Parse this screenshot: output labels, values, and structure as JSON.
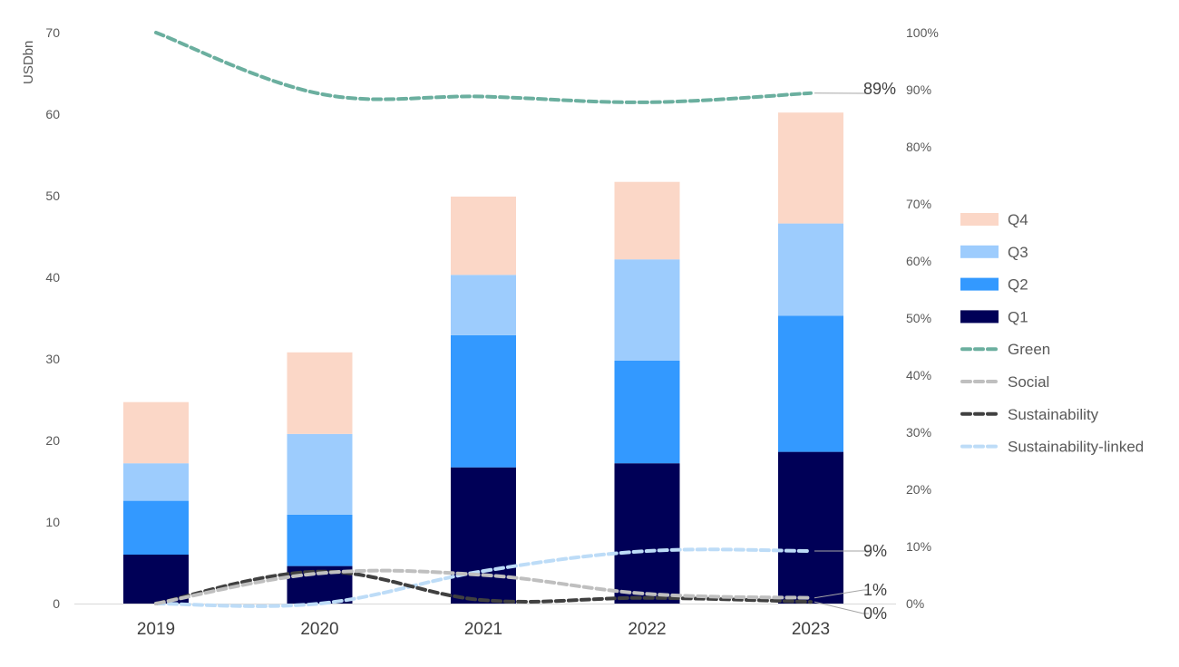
{
  "chart_data": {
    "type": "bar",
    "stacked": true,
    "categories": [
      "2019",
      "2020",
      "2021",
      "2022",
      "2023"
    ],
    "ylabel": "USDbn",
    "ylim": [
      0,
      70
    ],
    "yticks": [
      "0",
      "10",
      "20",
      "30",
      "40",
      "50",
      "60",
      "70"
    ],
    "y2lim": [
      0,
      100
    ],
    "y2ticks": [
      "0%",
      "10%",
      "20%",
      "30%",
      "40%",
      "50%",
      "60%",
      "70%",
      "80%",
      "90%",
      "100%"
    ],
    "series": [
      {
        "name": "Q1",
        "type": "bar",
        "axis": "left",
        "color": "#000057",
        "values": [
          6.0,
          4.6,
          16.7,
          17.2,
          18.6
        ]
      },
      {
        "name": "Q2",
        "type": "bar",
        "axis": "left",
        "color": "#3399FF",
        "values": [
          6.6,
          6.3,
          16.2,
          12.6,
          16.7
        ]
      },
      {
        "name": "Q3",
        "type": "bar",
        "axis": "left",
        "color": "#9DCCFD",
        "values": [
          4.6,
          9.9,
          7.4,
          12.4,
          11.3
        ]
      },
      {
        "name": "Q4",
        "type": "bar",
        "axis": "left",
        "color": "#FBD7C7",
        "values": [
          7.5,
          10.0,
          9.6,
          9.5,
          13.6
        ]
      },
      {
        "name": "Green",
        "type": "line",
        "axis": "right",
        "color": "#6BAF9F",
        "values": [
          100,
          89.3,
          88.8,
          87.8,
          89.4
        ]
      },
      {
        "name": "Social",
        "type": "line",
        "axis": "right",
        "color": "#BFBFBF",
        "values": [
          0,
          5.3,
          5.0,
          1.7,
          1.0
        ]
      },
      {
        "name": "Sustainability",
        "type": "line",
        "axis": "right",
        "color": "#404040",
        "values": [
          0,
          5.6,
          0.6,
          1.0,
          0.3
        ]
      },
      {
        "name": "Sustainability-linked",
        "type": "line",
        "axis": "right",
        "color": "#BDDCF7",
        "values": [
          0,
          0,
          5.7,
          9.2,
          9.2
        ]
      }
    ],
    "end_labels": [
      {
        "series": "Green",
        "text": "89%"
      },
      {
        "series": "Sustainability-linked",
        "text": "9%"
      },
      {
        "series": "Social",
        "text": "1%"
      },
      {
        "series": "Sustainability",
        "text": "0%"
      }
    ],
    "legend": {
      "position": "right",
      "order": [
        "Q4",
        "Q3",
        "Q2",
        "Q1",
        "Green",
        "Social",
        "Sustainability",
        "Sustainability-linked"
      ]
    },
    "grid": false
  }
}
